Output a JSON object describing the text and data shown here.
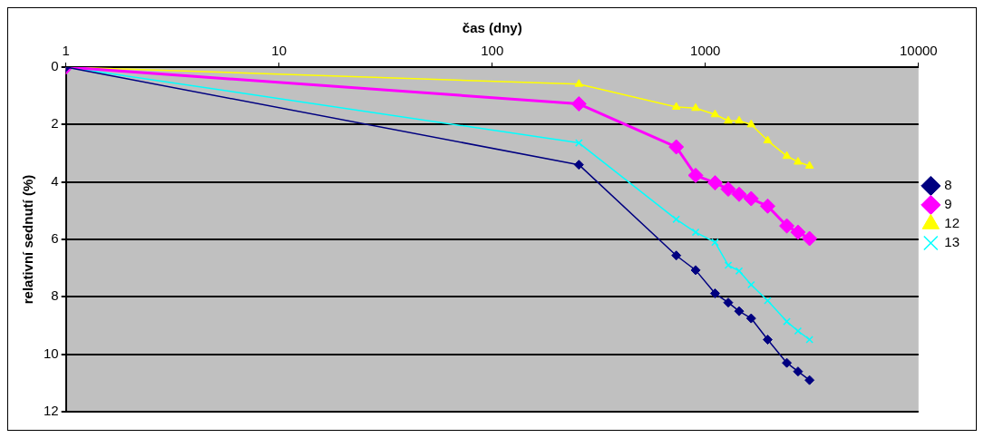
{
  "chart_data": {
    "type": "line",
    "xlabel": "čas (dny)",
    "ylabel": "relativní sednutí (%)",
    "x": [
      1,
      255,
      730,
      900,
      1110,
      1280,
      1440,
      1640,
      1960,
      2410,
      2720,
      3080
    ],
    "series": [
      {
        "name": "8",
        "color": "#000080",
        "marker": "diamond",
        "values": [
          0,
          3.4,
          6.56,
          7.07,
          7.88,
          8.2,
          8.5,
          8.75,
          9.49,
          10.3,
          10.6,
          10.9
        ]
      },
      {
        "name": "9",
        "color": "#ff00ff",
        "marker": "diamond",
        "values": [
          0,
          1.28,
          2.78,
          3.77,
          4.03,
          4.25,
          4.43,
          4.58,
          4.84,
          5.53,
          5.75,
          5.97
        ]
      },
      {
        "name": "12",
        "color": "#ffff00",
        "marker": "triangle",
        "values": [
          0,
          0.59,
          1.39,
          1.43,
          1.65,
          1.87,
          1.87,
          2.0,
          2.56,
          3.1,
          3.3,
          3.44
        ]
      },
      {
        "name": "13",
        "color": "#00ffff",
        "marker": "cross",
        "values": [
          0,
          2.64,
          5.3,
          5.75,
          6.1,
          6.9,
          7.1,
          7.58,
          8.13,
          8.86,
          9.19,
          9.49
        ]
      }
    ],
    "log": "x",
    "xlim": [
      1,
      10000
    ],
    "xticks": [
      1,
      10,
      100,
      1000,
      10000
    ],
    "ylim": [
      12,
      0
    ],
    "yticks": [
      0,
      2,
      4,
      6,
      8,
      10,
      12
    ],
    "grid": "y",
    "legend": "right"
  }
}
